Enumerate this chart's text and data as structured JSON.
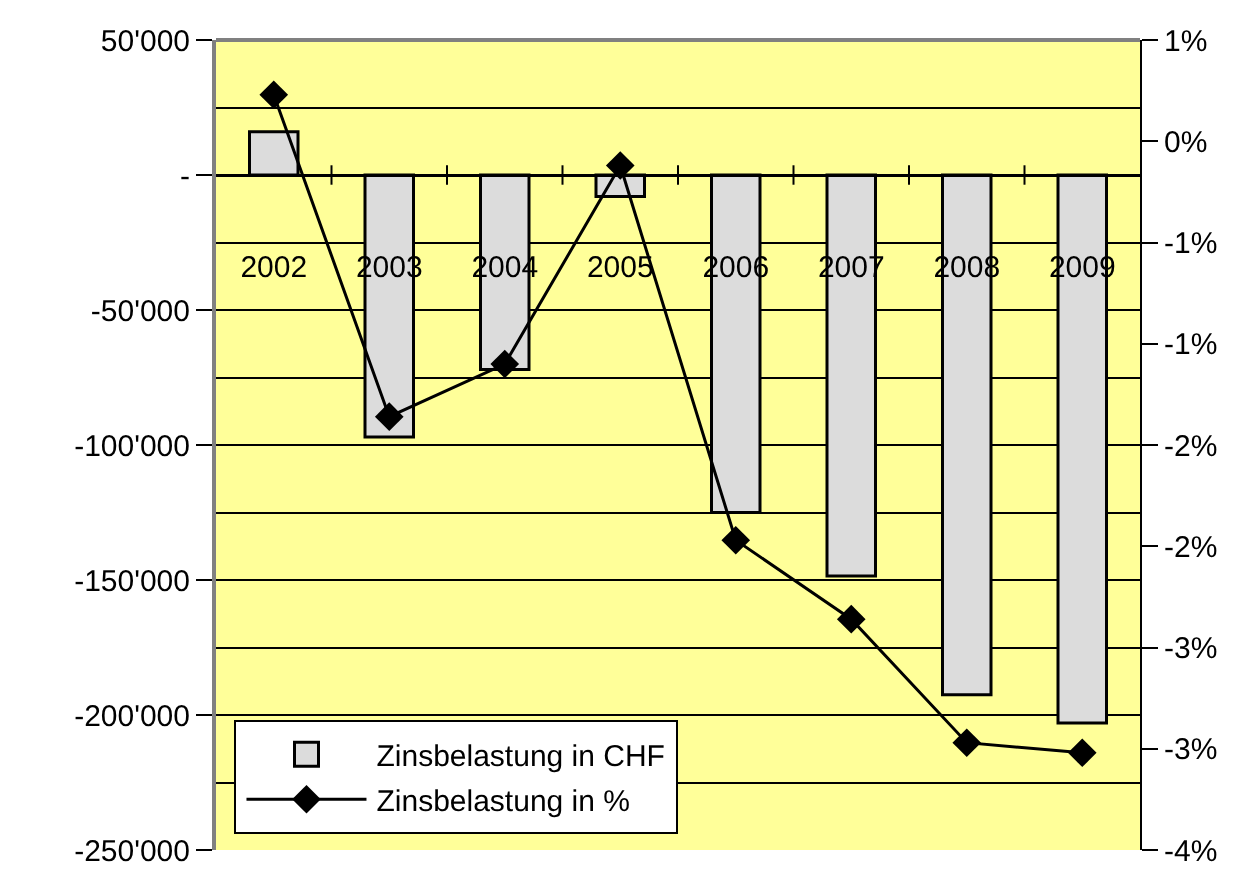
{
  "chart_data": {
    "type": "bar",
    "categories": [
      "2002",
      "2003",
      "2004",
      "2005",
      "2006",
      "2007",
      "2008",
      "2009"
    ],
    "series": [
      {
        "name": "Zinsbelastung in CHF",
        "color": "#dcdcdc",
        "values": [
          16000,
          -97000,
          -72000,
          -8000,
          -125000,
          -148500,
          -192500,
          -203000
        ]
      },
      {
        "name": "Zinsbelastung in %",
        "type": "line",
        "axis": "y2",
        "color": "#000000",
        "marker": "diamond",
        "values": [
          0.23,
          -1.36,
          -1.1,
          -0.12,
          -1.97,
          -2.36,
          -2.97,
          -3.02
        ]
      }
    ],
    "ylim": [
      -250000,
      50000
    ],
    "yticks": [
      {
        "value": -250000,
        "label": "-250'000"
      },
      {
        "value": -200000,
        "label": "-200'000"
      },
      {
        "value": -150000,
        "label": "-150'000"
      },
      {
        "value": -100000,
        "label": "-100'000"
      },
      {
        "value": -50000,
        "label": "-50'000"
      },
      {
        "value": 0,
        "label": "-"
      },
      {
        "value": 50000,
        "label": "50'000"
      }
    ],
    "y2lim": [
      -3.5,
      0.5
    ],
    "y2ticks": [
      {
        "value": -3.5,
        "label": "-4%"
      },
      {
        "value": -3,
        "label": "-3%"
      },
      {
        "value": -2.5,
        "label": "-3%"
      },
      {
        "value": -2,
        "label": "-2%"
      },
      {
        "value": -1.5,
        "label": "-2%"
      },
      {
        "value": -1,
        "label": "-1%"
      },
      {
        "value": -0.5,
        "label": "-1%"
      },
      {
        "value": 0,
        "label": "0%"
      },
      {
        "value": 0.5,
        "label": "1%"
      }
    ],
    "grid": "y",
    "legend": "bottom left"
  }
}
